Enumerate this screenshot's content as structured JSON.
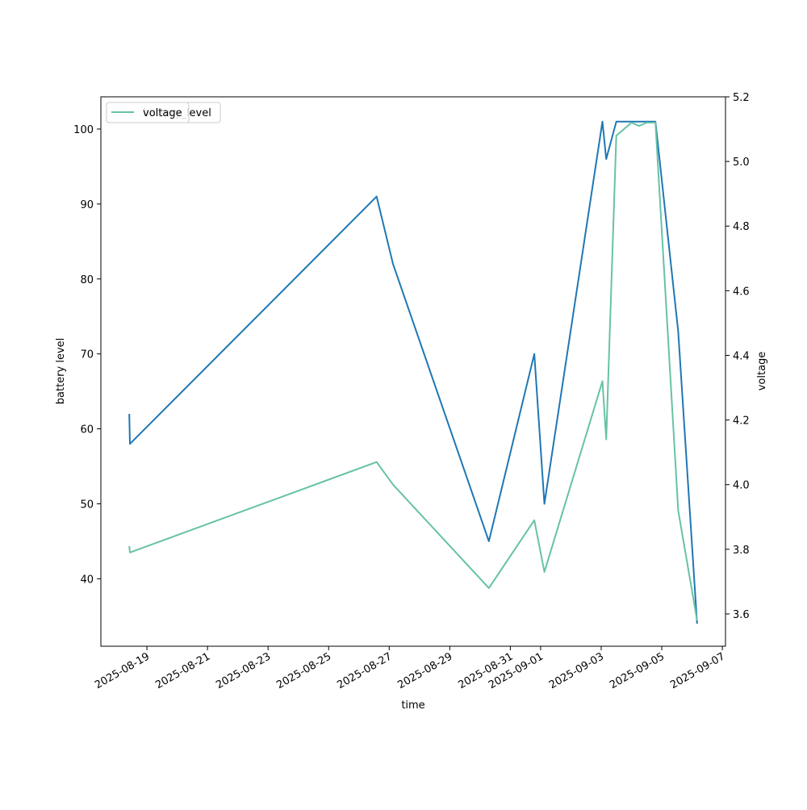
{
  "chart_data": {
    "type": "line",
    "xlabel": "time",
    "ylabel_left": "battery level",
    "ylabel_right": "voltage",
    "x_axis_type": "date",
    "xlim": [
      "2025-08-17T11:30",
      "2025-09-07T02:30"
    ],
    "ylim_left": [
      31,
      104.3
    ],
    "ylim_right": [
      3.5,
      5.2
    ],
    "x_ticks": [
      "2025-08-19",
      "2025-08-21",
      "2025-08-23",
      "2025-08-25",
      "2025-08-27",
      "2025-08-29",
      "2025-08-31",
      "2025-09-01",
      "2025-09-03",
      "2025-09-05",
      "2025-09-07"
    ],
    "y_ticks_left": [
      40,
      50,
      60,
      70,
      80,
      90,
      100
    ],
    "y_ticks_right": [
      3.6,
      3.8,
      4.0,
      4.2,
      4.4,
      4.6,
      4.8,
      5.0,
      5.2
    ],
    "legend_placement": "upper-left",
    "legend_entries": [
      {
        "name": "battery_level",
        "color": "#1f77b4"
      },
      {
        "name": "voltage",
        "color": "#66c2a5"
      }
    ],
    "grid": false,
    "series": [
      {
        "name": "battery_level",
        "axis": "left",
        "color": "#1f77b4",
        "points": [
          {
            "x": "2025-08-18T10:00",
            "y": 62
          },
          {
            "x": "2025-08-18T10:30",
            "y": 58
          },
          {
            "x": "2025-08-26T14:00",
            "y": 91
          },
          {
            "x": "2025-08-27T03:00",
            "y": 82
          },
          {
            "x": "2025-08-30T07:00",
            "y": 45
          },
          {
            "x": "2025-08-31T19:00",
            "y": 70
          },
          {
            "x": "2025-09-01T03:00",
            "y": 50
          },
          {
            "x": "2025-09-03T01:00",
            "y": 101
          },
          {
            "x": "2025-09-03T04:00",
            "y": 96
          },
          {
            "x": "2025-09-03T12:00",
            "y": 101
          },
          {
            "x": "2025-09-04T19:00",
            "y": 101
          },
          {
            "x": "2025-09-05T13:00",
            "y": 73
          },
          {
            "x": "2025-09-06T04:00",
            "y": 34
          }
        ]
      },
      {
        "name": "voltage",
        "axis": "right",
        "color": "#66c2a5",
        "points": [
          {
            "x": "2025-08-18T10:00",
            "y": 3.81
          },
          {
            "x": "2025-08-18T10:30",
            "y": 3.79
          },
          {
            "x": "2025-08-26T14:00",
            "y": 4.07
          },
          {
            "x": "2025-08-27T03:00",
            "y": 4.0
          },
          {
            "x": "2025-08-30T07:00",
            "y": 3.68
          },
          {
            "x": "2025-08-31T19:00",
            "y": 3.89
          },
          {
            "x": "2025-09-01T03:00",
            "y": 3.73
          },
          {
            "x": "2025-09-03T01:00",
            "y": 4.32
          },
          {
            "x": "2025-09-03T04:00",
            "y": 4.14
          },
          {
            "x": "2025-09-03T12:00",
            "y": 5.08
          },
          {
            "x": "2025-09-04T00:00",
            "y": 5.12
          },
          {
            "x": "2025-09-04T06:00",
            "y": 5.11
          },
          {
            "x": "2025-09-04T12:00",
            "y": 5.12
          },
          {
            "x": "2025-09-04T19:00",
            "y": 5.12
          },
          {
            "x": "2025-09-05T13:00",
            "y": 3.92
          },
          {
            "x": "2025-09-06T04:00",
            "y": 3.58
          }
        ]
      }
    ]
  }
}
